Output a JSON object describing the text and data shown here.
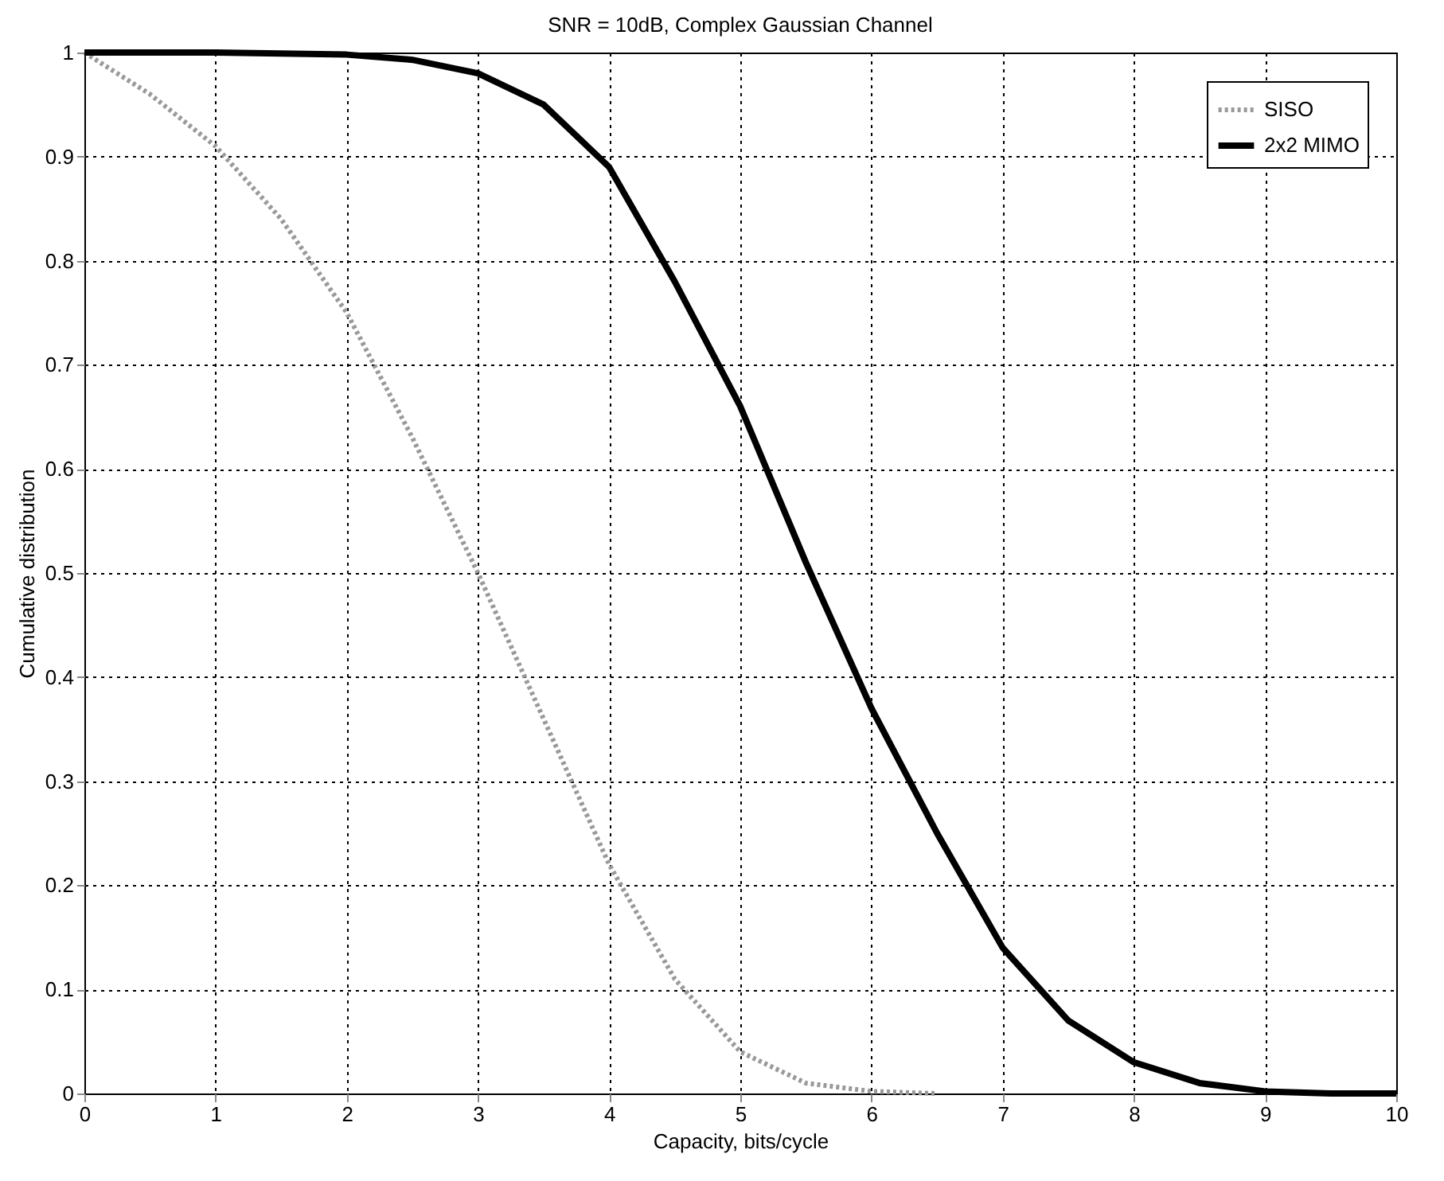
{
  "chart_data": {
    "type": "line",
    "title": "SNR = 10dB, Complex Gaussian Channel",
    "xlabel": "Capacity, bits/cycle",
    "ylabel": "Cumulative distribution",
    "xlim": [
      0,
      10
    ],
    "ylim": [
      0,
      1
    ],
    "xticks": [
      0,
      1,
      2,
      3,
      4,
      5,
      6,
      7,
      8,
      9,
      10
    ],
    "yticks": [
      0,
      0.1,
      0.2,
      0.3,
      0.4,
      0.5,
      0.6,
      0.7,
      0.8,
      0.9,
      1
    ],
    "grid": true,
    "legend": "top right",
    "series": [
      {
        "name": "SISO",
        "color": "#999999",
        "line_style": "dotted",
        "x": [
          0,
          0.5,
          1,
          1.5,
          2,
          2.5,
          3,
          3.5,
          4,
          4.5,
          5,
          5.5,
          6,
          6.5
        ],
        "values": [
          1,
          0.96,
          0.91,
          0.84,
          0.75,
          0.63,
          0.5,
          0.36,
          0.22,
          0.11,
          0.04,
          0.01,
          0.002,
          0
        ]
      },
      {
        "name": "2x2 MIMO",
        "color": "#000000",
        "line_style": "solid",
        "x": [
          0,
          1,
          2,
          2.5,
          3,
          3.5,
          4,
          4.5,
          5,
          5.5,
          6,
          6.5,
          7,
          7.5,
          8,
          8.5,
          9,
          9.5,
          10
        ],
        "values": [
          1,
          1,
          0.998,
          0.993,
          0.98,
          0.95,
          0.89,
          0.78,
          0.66,
          0.51,
          0.37,
          0.25,
          0.14,
          0.07,
          0.03,
          0.01,
          0.002,
          0,
          0
        ]
      }
    ]
  }
}
